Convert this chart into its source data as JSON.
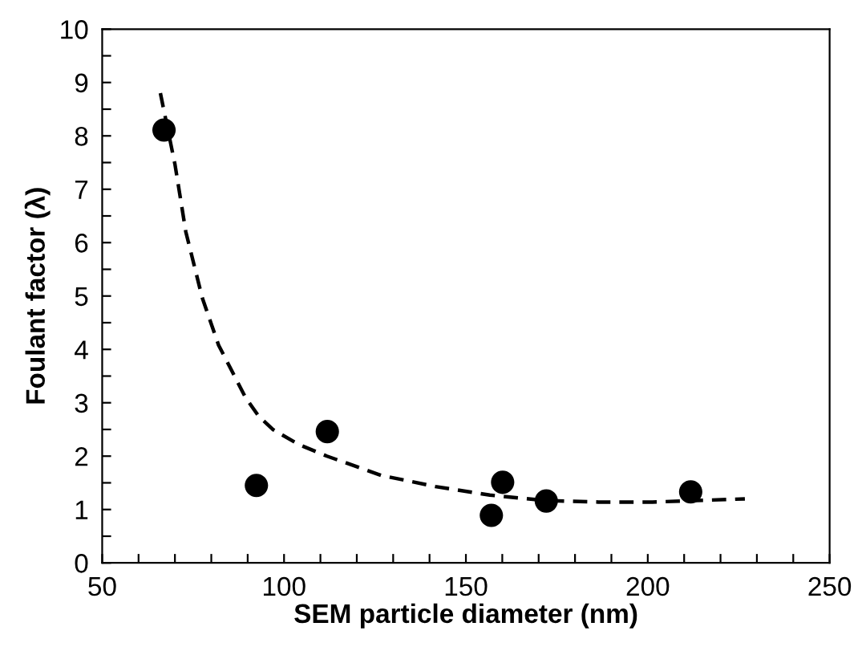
{
  "chart_data": {
    "type": "scatter",
    "xlabel": "SEM particle diameter (nm)",
    "ylabel": "Foulant factor (λ)",
    "series": [
      {
        "color": "#000000",
        "marker": "circle",
        "x": [
          67,
          92.4,
          111.9,
          157,
          160.1,
          172.1,
          211.8
        ],
        "values": [
          8.11,
          1.45,
          2.46,
          0.89,
          1.51,
          1.16,
          1.33
        ]
      },
      {
        "type": "line",
        "color": "#000000",
        "line_style": "dashed",
        "marker": "none",
        "x": [
          66,
          70,
          73,
          77.5,
          82,
          89.4,
          93,
          96.9,
          104,
          111.8,
          126.7,
          141.6,
          156.6,
          171.5,
          186.4,
          201.3,
          226.7
        ],
        "values": [
          8.8,
          7.47,
          6.2,
          4.97,
          4.08,
          3.1,
          2.75,
          2.5,
          2.22,
          2.0,
          1.64,
          1.43,
          1.27,
          1.17,
          1.14,
          1.14,
          1.2
        ]
      }
    ],
    "xlim": [
      50,
      250
    ],
    "ylim": [
      0,
      10
    ],
    "xticks": [
      50,
      {
        "value": 60,
        "label": null
      },
      {
        "value": 70,
        "label": null
      },
      {
        "value": 80,
        "label": null
      },
      {
        "value": 90,
        "label": null
      },
      100,
      {
        "value": 110,
        "label": null
      },
      {
        "value": 120,
        "label": null
      },
      {
        "value": 130,
        "label": null
      },
      {
        "value": 140,
        "label": null
      },
      150,
      {
        "value": 160,
        "label": null
      },
      {
        "value": 170,
        "label": null
      },
      {
        "value": 180,
        "label": null
      },
      {
        "value": 190,
        "label": null
      },
      200,
      {
        "value": 210,
        "label": null
      },
      {
        "value": 220,
        "label": null
      },
      {
        "value": 230,
        "label": null
      },
      {
        "value": 240,
        "label": null
      },
      250
    ],
    "yticks": [
      0,
      {
        "value": 0.5,
        "label": null
      },
      1,
      {
        "value": 1.5,
        "label": null
      },
      2,
      {
        "value": 2.5,
        "label": null
      },
      3,
      {
        "value": 3.5,
        "label": null
      },
      4,
      {
        "value": 4.5,
        "label": null
      },
      5,
      {
        "value": 5.5,
        "label": null
      },
      6,
      {
        "value": 6.5,
        "label": null
      },
      7,
      {
        "value": 7.5,
        "label": null
      },
      8,
      {
        "value": 8.5,
        "label": null
      },
      9,
      {
        "value": 9.5,
        "label": null
      },
      10
    ],
    "grid": false,
    "legend": false
  }
}
